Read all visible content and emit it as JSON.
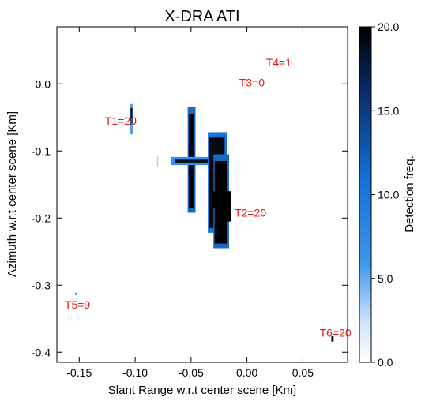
{
  "chart_data": {
    "type": "heatmap",
    "title": "X-DRA ATI",
    "xlabel": "Slant Range w.r.t center scene [Km]",
    "ylabel": "Azimuth w.r.t center scene [Km]",
    "xlim": [
      -0.17,
      0.09
    ],
    "ylim": [
      -0.415,
      0.085
    ],
    "x_ticks": [
      -0.15,
      -0.1,
      -0.05,
      0.0,
      0.05
    ],
    "x_tick_labels": [
      "-0.15",
      "-0.10",
      "-0.05",
      "0.00",
      "0.05"
    ],
    "y_ticks": [
      0.0,
      -0.1,
      -0.2,
      -0.3,
      -0.4
    ],
    "y_tick_labels": [
      "0.0",
      "-0.1",
      "-0.2",
      "-0.3",
      "-0.4"
    ],
    "colorbar": {
      "label": "Detection freq.",
      "range": [
        0,
        20
      ],
      "ticks": [
        0,
        5,
        10,
        15,
        20
      ],
      "tick_labels": [
        "0.0",
        "5.0",
        "10.0",
        "15.0",
        "20.0"
      ],
      "colors": [
        "#ffffff",
        "#1e7ee6",
        "#000000"
      ]
    },
    "annotations": [
      {
        "text": "T1=20",
        "x": -0.127,
        "y": -0.055
      },
      {
        "text": "T2=20",
        "x": -0.011,
        "y": -0.192
      },
      {
        "text": "T3=0",
        "x": -0.007,
        "y": 0.002
      },
      {
        "text": "T4=1",
        "x": 0.017,
        "y": 0.032
      },
      {
        "text": "T5=9",
        "x": -0.163,
        "y": -0.329
      },
      {
        "text": "T6=20",
        "x": 0.065,
        "y": -0.371
      }
    ],
    "annotation_color": "#e31b1b",
    "detections": [
      {
        "x0": -0.1045,
        "x1": -0.102,
        "y0": -0.075,
        "y1": -0.03,
        "freq": 6
      },
      {
        "x0": -0.104,
        "x1": -0.1025,
        "y0": -0.06,
        "y1": -0.036,
        "freq": 20
      },
      {
        "x0": -0.053,
        "x1": -0.046,
        "y0": -0.192,
        "y1": -0.035,
        "freq": 10
      },
      {
        "x0": -0.052,
        "x1": -0.0475,
        "y0": -0.185,
        "y1": -0.045,
        "freq": 20
      },
      {
        "x0": -0.068,
        "x1": -0.03,
        "y0": -0.121,
        "y1": -0.109,
        "freq": 7
      },
      {
        "x0": -0.064,
        "x1": -0.034,
        "y0": -0.118,
        "y1": -0.113,
        "freq": 18
      },
      {
        "x0": -0.035,
        "x1": -0.018,
        "y0": -0.222,
        "y1": -0.072,
        "freq": 9
      },
      {
        "x0": -0.034,
        "x1": -0.02,
        "y0": -0.215,
        "y1": -0.08,
        "freq": 19
      },
      {
        "x0": -0.03,
        "x1": -0.016,
        "y0": -0.245,
        "y1": -0.105,
        "freq": 10
      },
      {
        "x0": -0.029,
        "x1": -0.018,
        "y0": -0.238,
        "y1": -0.115,
        "freq": 20
      },
      {
        "x0": -0.031,
        "x1": -0.015,
        "y0": -0.185,
        "y1": -0.16,
        "freq": 20
      },
      {
        "x0": -0.025,
        "x1": -0.014,
        "y0": -0.205,
        "y1": -0.16,
        "freq": 20
      },
      {
        "x0": -0.0805,
        "x1": -0.0795,
        "y0": -0.123,
        "y1": -0.107,
        "freq": 3
      },
      {
        "x0": -0.1535,
        "x1": -0.1525,
        "y0": -0.315,
        "y1": -0.311,
        "freq": 9
      },
      {
        "x0": 0.0755,
        "x1": 0.0775,
        "y0": -0.384,
        "y1": -0.376,
        "freq": 20
      }
    ]
  }
}
